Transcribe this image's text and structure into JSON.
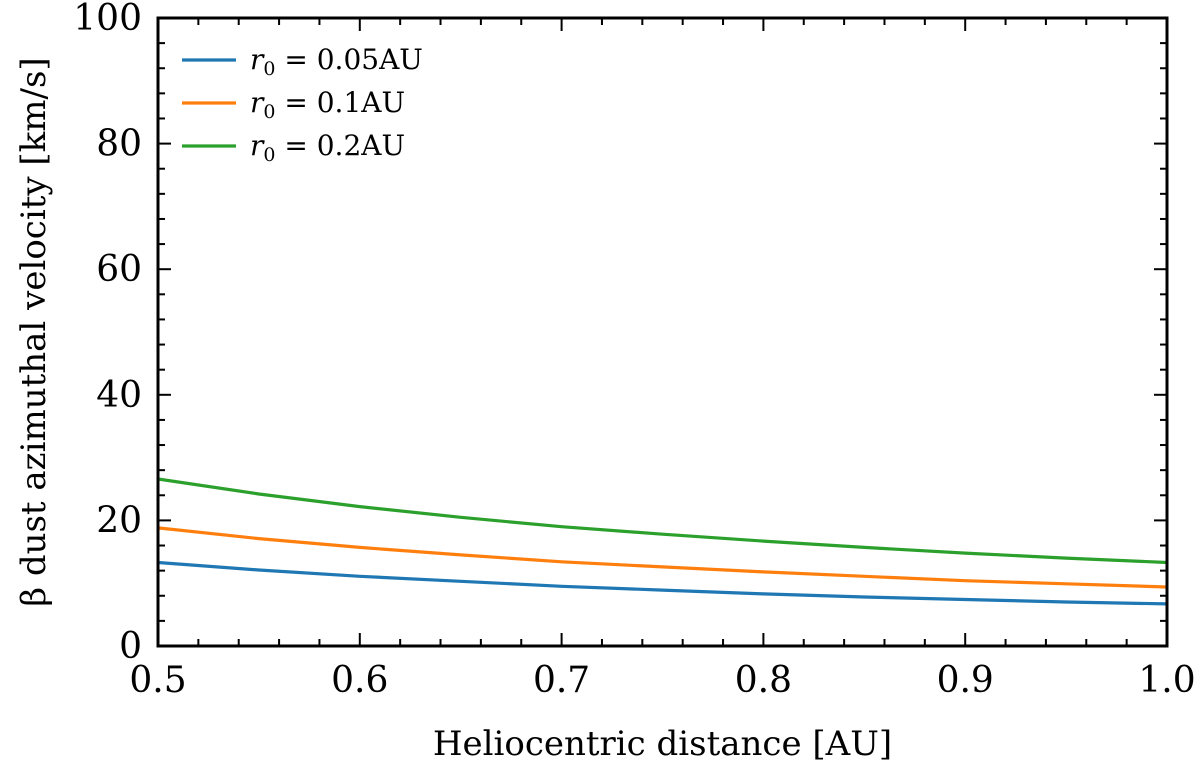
{
  "chart_data": {
    "type": "line",
    "xlabel": "Heliocentric distance [AU]",
    "ylabel": "β dust azimuthal velocity [km/s]",
    "xlim": [
      0.5,
      1.0
    ],
    "ylim": [
      0,
      100
    ],
    "x_ticks": [
      "0.5",
      "0.6",
      "0.7",
      "0.8",
      "0.9",
      "1.0"
    ],
    "y_ticks": [
      "0",
      "20",
      "40",
      "60",
      "80",
      "100"
    ],
    "grid": false,
    "legend_position": "top-left",
    "x": [
      0.5,
      0.55,
      0.6,
      0.65,
      0.7,
      0.75,
      0.8,
      0.85,
      0.9,
      0.95,
      1.0
    ],
    "series": [
      {
        "name": "r0 = 0.05AU",
        "legend_symbol": "r",
        "legend_subscript": "0",
        "legend_text": " = 0.05AU",
        "color": "#1f77b4",
        "values": [
          13.3,
          12.1,
          11.1,
          10.3,
          9.5,
          8.9,
          8.3,
          7.8,
          7.4,
          7.0,
          6.7
        ]
      },
      {
        "name": "r0 = 0.1AU",
        "legend_symbol": "r",
        "legend_subscript": "0",
        "legend_text": " = 0.1AU",
        "color": "#ff7f0e",
        "values": [
          18.8,
          17.1,
          15.7,
          14.5,
          13.4,
          12.6,
          11.8,
          11.1,
          10.4,
          9.9,
          9.4
        ]
      },
      {
        "name": "r0 = 0.2AU",
        "legend_symbol": "r",
        "legend_subscript": "0",
        "legend_text": " = 0.2AU",
        "color": "#2ca02c",
        "values": [
          26.6,
          24.2,
          22.2,
          20.5,
          19.0,
          17.8,
          16.7,
          15.7,
          14.8,
          14.0,
          13.3
        ]
      }
    ]
  }
}
